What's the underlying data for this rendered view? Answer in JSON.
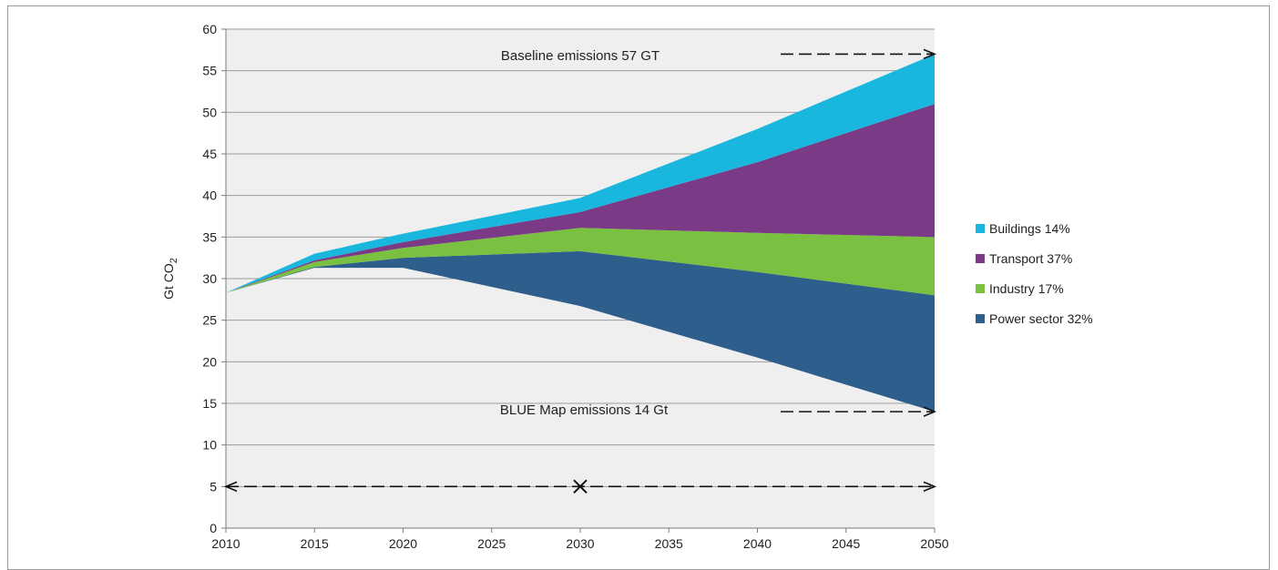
{
  "chart_data": {
    "type": "area",
    "stacked": true,
    "title": "",
    "xlabel": "",
    "ylabel": "Gt CO",
    "ylabel_subscript": "2",
    "xlim": [
      2010,
      2050
    ],
    "ylim": [
      0,
      60
    ],
    "x_ticks": [
      "2010",
      "2015",
      "2020",
      "2025",
      "2030",
      "2035",
      "2040",
      "2045",
      "2050"
    ],
    "y_ticks": [
      "0",
      "5",
      "10",
      "15",
      "20",
      "25",
      "30",
      "35",
      "40",
      "45",
      "50",
      "55",
      "60"
    ],
    "grid": "horizontal",
    "plot_background": "#efefef",
    "x": [
      2010,
      2015,
      2020,
      2030,
      2040,
      2050
    ],
    "blue_map_line": [
      28.3,
      31.3,
      31.3,
      26.7,
      20.5,
      14.0
    ],
    "series": [
      {
        "name": "Power sector 32%",
        "color": "#2e5e8c",
        "values": [
          0,
          0.1,
          1.2,
          6.6,
          10.3,
          14.0
        ]
      },
      {
        "name": "Industry 17%",
        "color": "#7ac142",
        "values": [
          0,
          0.6,
          1.2,
          2.8,
          4.7,
          7.0
        ]
      },
      {
        "name": "Transport 37%",
        "color": "#7b3a85",
        "values": [
          0,
          0.2,
          0.7,
          1.9,
          8.5,
          16.0
        ]
      },
      {
        "name": "Buildings 14%",
        "color": "#19b6de",
        "values": [
          0,
          0.8,
          1.0,
          1.7,
          4.0,
          6.0
        ]
      }
    ],
    "legend_position": "right",
    "annotations": {
      "baseline": "Baseline emissions 57 GT",
      "blue_map": "BLUE Map emissions 14 Gt"
    }
  }
}
